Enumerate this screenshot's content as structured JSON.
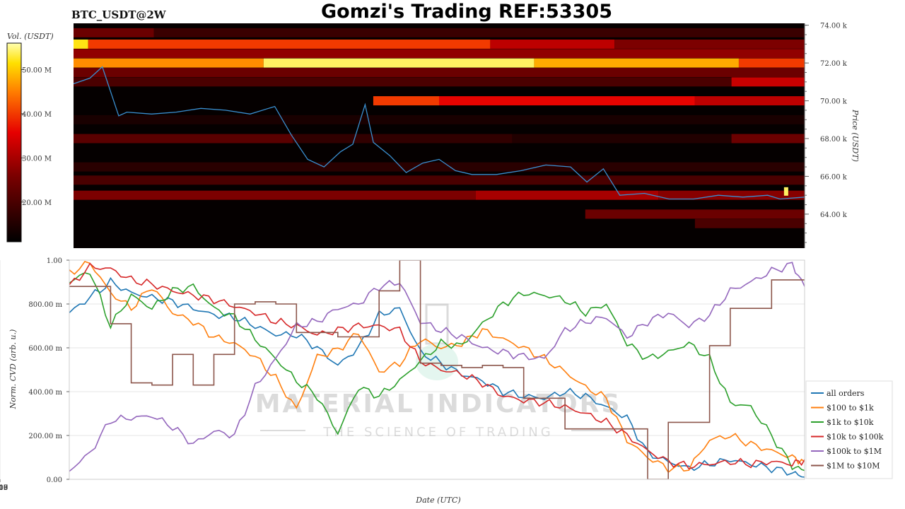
{
  "header": {
    "symbol": "BTC_USDT@2W",
    "title": "Gomzi's Trading REF:53305"
  },
  "watermark": {
    "brand": "MATERIAL INDICATORS",
    "tagline": "THE SCIENCE OF TRADING"
  },
  "colors": {
    "all_orders": "#1f77b4",
    "100_to_1k": "#ff7f0e",
    "1k_to_10k": "#2ca02c",
    "10k_to_100k": "#d62728",
    "100k_to_1m": "#9467bd",
    "1m_to_10m": "#8c564b",
    "price_line": "#3a8fd0"
  },
  "chart_data": [
    {
      "type": "heatmap",
      "title": "Gomzi's Trading REF:53305",
      "colorbar": {
        "label": "Vol. (USDT)",
        "ticks": [
          "50.00 M",
          "40.00 M",
          "30.00 M",
          "20.00 M"
        ],
        "tick_values": [
          50,
          40,
          30,
          20
        ],
        "range": [
          11,
          56
        ],
        "colormap": "hot"
      },
      "y_axis": {
        "label": "Price (USDT)",
        "ticks": [
          "74.00 k",
          "72.00 k",
          "70.00 k",
          "68.00 k",
          "66.00 k",
          "64.00 k"
        ],
        "tick_values": [
          74000,
          72000,
          70000,
          68000,
          66000,
          64000
        ],
        "range": [
          62200,
          74100
        ]
      },
      "x_range_days": [
        "2024-06-06 22:00",
        "2024-06-21 18:00"
      ],
      "bands": [
        {
          "price": 73600,
          "segments": [
            [
              0,
              11,
              24
            ],
            [
              11,
              100,
              18
            ]
          ]
        },
        {
          "price": 73000,
          "segments": [
            [
              0,
              2,
              52
            ],
            [
              2,
              57,
              40
            ],
            [
              57,
              74,
              32
            ],
            [
              74,
              100,
              26
            ]
          ]
        },
        {
          "price": 72500,
          "segments": [
            [
              0,
              100,
              28
            ]
          ]
        },
        {
          "price": 72000,
          "segments": [
            [
              0,
              26,
              46
            ],
            [
              26,
              63,
              54
            ],
            [
              63,
              91,
              48
            ],
            [
              91,
              100,
              40
            ]
          ]
        },
        {
          "price": 71500,
          "segments": [
            [
              0,
              100,
              24
            ]
          ]
        },
        {
          "price": 71000,
          "segments": [
            [
              0,
              90,
              20
            ],
            [
              90,
              100,
              33
            ]
          ]
        },
        {
          "price": 70000,
          "segments": [
            [
              41,
              50,
              40
            ],
            [
              50,
              85,
              36
            ],
            [
              85,
              100,
              32
            ]
          ]
        },
        {
          "price": 69000,
          "segments": [
            [
              0,
              100,
              14
            ]
          ]
        },
        {
          "price": 68000,
          "segments": [
            [
              0,
              30,
              22
            ],
            [
              30,
              60,
              17
            ],
            [
              60,
              100,
              15
            ],
            [
              90,
              100,
              24
            ]
          ]
        },
        {
          "price": 66500,
          "segments": [
            [
              0,
              100,
              16
            ]
          ]
        },
        {
          "price": 65800,
          "segments": [
            [
              0,
              100,
              20
            ]
          ]
        },
        {
          "price": 65000,
          "segments": [
            [
              0,
              55,
              26
            ],
            [
              55,
              80,
              30
            ],
            [
              80,
              100,
              27
            ]
          ]
        },
        {
          "price": 64000,
          "segments": [
            [
              70,
              100,
              24
            ]
          ]
        },
        {
          "price": 63500,
          "segments": [
            [
              85,
              100,
              20
            ]
          ]
        }
      ],
      "hotspots": [
        {
          "date": "2024-06-21 09:00",
          "price": 65200,
          "value": 54
        }
      ],
      "price_series": {
        "name": "BTC_USDT price",
        "x": [
          "2024-06-06 22:00",
          "2024-06-07 06:00",
          "2024-06-07 12:00",
          "2024-06-07 20:00",
          "2024-06-08 00:00",
          "2024-06-08 12:00",
          "2024-06-09 00:00",
          "2024-06-09 12:00",
          "2024-06-10 00:00",
          "2024-06-10 12:00",
          "2024-06-11 00:00",
          "2024-06-11 08:00",
          "2024-06-11 16:00",
          "2024-06-12 00:00",
          "2024-06-12 08:00",
          "2024-06-12 14:00",
          "2024-06-12 20:00",
          "2024-06-13 00:00",
          "2024-06-13 08:00",
          "2024-06-13 16:00",
          "2024-06-14 00:00",
          "2024-06-14 08:00",
          "2024-06-14 16:00",
          "2024-06-15 00:00",
          "2024-06-15 12:00",
          "2024-06-16 00:00",
          "2024-06-16 12:00",
          "2024-06-17 00:00",
          "2024-06-17 08:00",
          "2024-06-17 16:00",
          "2024-06-18 00:00",
          "2024-06-18 12:00",
          "2024-06-19 00:00",
          "2024-06-19 12:00",
          "2024-06-20 00:00",
          "2024-06-20 12:00",
          "2024-06-21 00:00",
          "2024-06-21 06:00",
          "2024-06-21 18:00"
        ],
        "y": [
          70900,
          71200,
          71800,
          69200,
          69400,
          69300,
          69400,
          69600,
          69500,
          69300,
          69700,
          68200,
          66900,
          66500,
          67300,
          67700,
          69800,
          67800,
          67100,
          66200,
          66700,
          66900,
          66300,
          66100,
          66100,
          66300,
          66600,
          66500,
          65700,
          66400,
          65000,
          65100,
          64800,
          64800,
          65000,
          64900,
          65000,
          64800,
          64900
        ]
      }
    },
    {
      "type": "line",
      "xlabel": "Date (UTC)",
      "ylabel": "Norm. CVD (arb. u.)",
      "x_ticks": [
        "6/07",
        "6/10",
        "6/13",
        "6/16",
        "6/19"
      ],
      "x_tick_values": [
        "2024-06-07",
        "2024-06-10",
        "2024-06-13",
        "2024-06-16",
        "2024-06-19"
      ],
      "x_range": [
        "2024-06-06 22:00",
        "2024-06-21 18:00"
      ],
      "y_ticks": [
        "1.00",
        "800.00 m",
        "600.00 m",
        "400.00 m",
        "200.00 m",
        "0.00"
      ],
      "y_tick_values": [
        1.0,
        0.8,
        0.6,
        0.4,
        0.2,
        0.0
      ],
      "ylim": [
        0,
        1
      ],
      "grid": true,
      "legend_position": "bottom-right",
      "x": [
        "2024-06-06 22:00",
        "2024-06-07 08:00",
        "2024-06-07 18:00",
        "2024-06-08 04:00",
        "2024-06-08 14:00",
        "2024-06-09 00:00",
        "2024-06-09 10:00",
        "2024-06-09 20:00",
        "2024-06-10 06:00",
        "2024-06-10 16:00",
        "2024-06-11 02:00",
        "2024-06-11 12:00",
        "2024-06-11 22:00",
        "2024-06-12 08:00",
        "2024-06-12 18:00",
        "2024-06-13 04:00",
        "2024-06-13 14:00",
        "2024-06-14 00:00",
        "2024-06-14 10:00",
        "2024-06-14 20:00",
        "2024-06-15 06:00",
        "2024-06-15 16:00",
        "2024-06-16 02:00",
        "2024-06-16 12:00",
        "2024-06-16 22:00",
        "2024-06-17 08:00",
        "2024-06-17 18:00",
        "2024-06-18 04:00",
        "2024-06-18 14:00",
        "2024-06-19 00:00",
        "2024-06-19 10:00",
        "2024-06-19 20:00",
        "2024-06-20 06:00",
        "2024-06-20 16:00",
        "2024-06-21 02:00",
        "2024-06-21 12:00",
        "2024-06-21 18:00"
      ],
      "series": [
        {
          "name": "all orders",
          "color_key": "all_orders",
          "values": [
            0.76,
            0.83,
            0.9,
            0.85,
            0.83,
            0.81,
            0.78,
            0.75,
            0.74,
            0.7,
            0.66,
            0.66,
            0.6,
            0.52,
            0.6,
            0.75,
            0.78,
            0.58,
            0.53,
            0.48,
            0.45,
            0.4,
            0.38,
            0.37,
            0.4,
            0.38,
            0.33,
            0.28,
            0.12,
            0.08,
            0.05,
            0.07,
            0.09,
            0.07,
            0.05,
            0.03,
            0.01
          ]
        },
        {
          "name": "$100 to $1k",
          "color_key": "100_to_1k",
          "values": [
            0.94,
            0.99,
            0.85,
            0.78,
            0.88,
            0.76,
            0.72,
            0.65,
            0.62,
            0.56,
            0.46,
            0.32,
            0.56,
            0.59,
            0.67,
            0.49,
            0.53,
            0.64,
            0.6,
            0.62,
            0.68,
            0.64,
            0.6,
            0.55,
            0.49,
            0.42,
            0.37,
            0.18,
            0.1,
            0.05,
            0.05,
            0.18,
            0.2,
            0.16,
            0.13,
            0.1,
            0.08
          ]
        },
        {
          "name": "$1k to $10k",
          "color_key": "1k_to_10k",
          "values": [
            0.9,
            0.95,
            0.7,
            0.84,
            0.78,
            0.86,
            0.88,
            0.78,
            0.74,
            0.64,
            0.55,
            0.45,
            0.38,
            0.21,
            0.42,
            0.38,
            0.45,
            0.54,
            0.62,
            0.61,
            0.71,
            0.8,
            0.85,
            0.84,
            0.82,
            0.76,
            0.8,
            0.62,
            0.55,
            0.58,
            0.62,
            0.55,
            0.35,
            0.33,
            0.2,
            0.06,
            0.04
          ]
        },
        {
          "name": "$10k to $100k",
          "color_key": "10k_to_100k",
          "values": [
            0.88,
            0.97,
            0.96,
            0.91,
            0.89,
            0.86,
            0.84,
            0.82,
            0.79,
            0.76,
            0.72,
            0.7,
            0.66,
            0.68,
            0.7,
            0.7,
            0.68,
            0.54,
            0.5,
            0.48,
            0.44,
            0.38,
            0.36,
            0.35,
            0.33,
            0.3,
            0.26,
            0.2,
            0.13,
            0.08,
            0.06,
            0.07,
            0.08,
            0.07,
            0.08,
            0.07,
            0.09
          ]
        },
        {
          "name": "$100k to $1M",
          "color_key": "100k_to_1m",
          "values": [
            0.04,
            0.12,
            0.27,
            0.28,
            0.29,
            0.24,
            0.16,
            0.22,
            0.2,
            0.42,
            0.55,
            0.7,
            0.72,
            0.78,
            0.8,
            0.88,
            0.9,
            0.72,
            0.68,
            0.65,
            0.6,
            0.58,
            0.56,
            0.55,
            0.68,
            0.72,
            0.74,
            0.65,
            0.72,
            0.76,
            0.7,
            0.75,
            0.86,
            0.9,
            0.95,
            0.98,
            0.88
          ]
        },
        {
          "name": "$1M to $10M",
          "color_key": "1m_to_10m",
          "values": [
            0.88,
            0.88,
            0.71,
            0.44,
            0.43,
            0.57,
            0.43,
            0.57,
            0.8,
            0.81,
            0.8,
            0.67,
            0.67,
            0.65,
            0.65,
            0.86,
            1.0,
            0.53,
            0.52,
            0.51,
            0.52,
            0.51,
            0.37,
            0.37,
            0.23,
            0.23,
            0.23,
            0.23,
            0.0,
            0.26,
            0.26,
            0.61,
            0.78,
            0.78,
            0.91,
            0.91,
            0.91
          ]
        }
      ]
    }
  ]
}
